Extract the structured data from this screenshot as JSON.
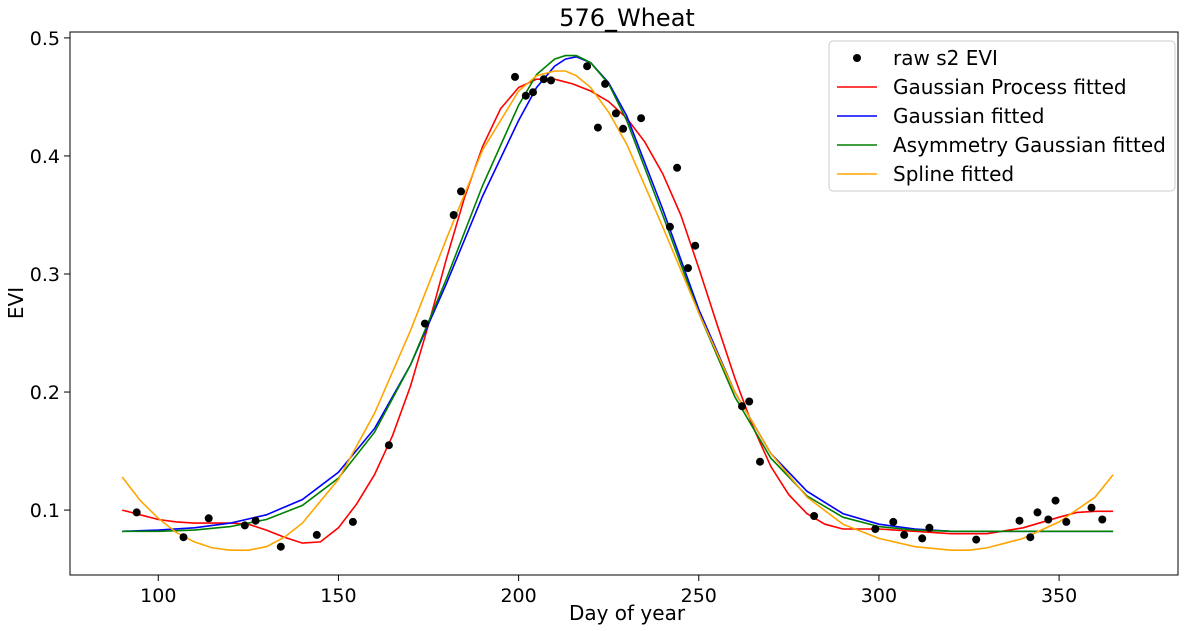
{
  "chart_data": {
    "type": "line",
    "title": "576_Wheat",
    "xlabel": "Day of year",
    "ylabel": "EVI",
    "xlim": [
      75,
      1178
    ],
    "ylim": [
      0.045,
      0.505
    ],
    "xticks": [
      100,
      150,
      200,
      250,
      300,
      350
    ],
    "yticks": [
      0.1,
      0.2,
      0.3,
      0.4,
      0.5
    ],
    "xtick_labels": [
      "100",
      "150",
      "200",
      "250",
      "300",
      "350"
    ],
    "ytick_labels": [
      "0.1",
      "0.2",
      "0.3",
      "0.4",
      "0.5"
    ],
    "grid": false,
    "legend_position": "top-right",
    "scatter": {
      "name": "raw s2 EVI",
      "color": "#000000",
      "x": [
        94,
        107,
        114,
        124,
        127,
        134,
        144,
        154,
        164,
        174,
        182,
        184,
        199,
        202,
        204,
        207,
        209,
        219,
        222,
        224,
        227,
        229,
        234,
        242,
        244,
        247,
        249,
        262,
        264,
        267,
        282,
        299,
        304,
        307,
        312,
        314,
        327,
        339,
        342,
        344,
        347,
        349,
        352,
        359,
        362
      ],
      "y": [
        0.098,
        0.077,
        0.093,
        0.087,
        0.091,
        0.069,
        0.079,
        0.09,
        0.155,
        0.258,
        0.35,
        0.37,
        0.467,
        0.451,
        0.454,
        0.465,
        0.464,
        0.476,
        0.424,
        0.461,
        0.436,
        0.423,
        0.432,
        0.34,
        0.39,
        0.305,
        0.324,
        0.188,
        0.192,
        0.141,
        0.095,
        0.084,
        0.09,
        0.079,
        0.076,
        0.085,
        0.075,
        0.091,
        0.077,
        0.098,
        0.092,
        0.108,
        0.09,
        0.102,
        0.092
      ]
    },
    "series": [
      {
        "name": "Gaussian Process fitted",
        "color": "#ff0000",
        "x": [
          90,
          95,
          100,
          105,
          110,
          115,
          120,
          125,
          130,
          135,
          140,
          145,
          150,
          155,
          160,
          165,
          170,
          175,
          180,
          185,
          190,
          195,
          200,
          205,
          210,
          215,
          220,
          225,
          230,
          235,
          240,
          245,
          250,
          255,
          260,
          265,
          270,
          275,
          280,
          285,
          290,
          300,
          310,
          320,
          330,
          340,
          350,
          355,
          360,
          365
        ],
        "y": [
          0.1,
          0.096,
          0.092,
          0.09,
          0.089,
          0.089,
          0.089,
          0.088,
          0.083,
          0.077,
          0.072,
          0.073,
          0.085,
          0.105,
          0.13,
          0.163,
          0.205,
          0.257,
          0.313,
          0.365,
          0.408,
          0.44,
          0.458,
          0.465,
          0.465,
          0.461,
          0.455,
          0.446,
          0.432,
          0.412,
          0.385,
          0.35,
          0.305,
          0.258,
          0.212,
          0.171,
          0.137,
          0.113,
          0.097,
          0.088,
          0.084,
          0.084,
          0.082,
          0.08,
          0.08,
          0.085,
          0.094,
          0.098,
          0.099,
          0.099
        ]
      },
      {
        "name": "Gaussian fitted",
        "color": "#0000ff",
        "x": [
          90,
          100,
          110,
          120,
          130,
          140,
          150,
          160,
          170,
          180,
          190,
          200,
          205,
          210,
          213,
          216,
          220,
          225,
          230,
          240,
          250,
          260,
          270,
          280,
          290,
          300,
          310,
          320,
          330,
          340,
          350,
          365
        ],
        "y": [
          0.082,
          0.083,
          0.085,
          0.089,
          0.096,
          0.109,
          0.132,
          0.169,
          0.223,
          0.292,
          0.366,
          0.43,
          0.458,
          0.476,
          0.482,
          0.484,
          0.479,
          0.462,
          0.434,
          0.355,
          0.27,
          0.2,
          0.148,
          0.116,
          0.097,
          0.088,
          0.084,
          0.082,
          0.082,
          0.082,
          0.082,
          0.082
        ]
      },
      {
        "name": "Asymmetry Gaussian fitted",
        "color": "#008000",
        "x": [
          90,
          100,
          110,
          120,
          130,
          140,
          150,
          160,
          170,
          180,
          190,
          200,
          205,
          210,
          213,
          216,
          220,
          225,
          230,
          240,
          250,
          260,
          270,
          280,
          290,
          300,
          310,
          320,
          330,
          340,
          350,
          365
        ],
        "y": [
          0.082,
          0.082,
          0.083,
          0.086,
          0.092,
          0.104,
          0.127,
          0.166,
          0.223,
          0.296,
          0.375,
          0.443,
          0.469,
          0.482,
          0.485,
          0.485,
          0.479,
          0.461,
          0.43,
          0.35,
          0.267,
          0.196,
          0.144,
          0.112,
          0.094,
          0.086,
          0.083,
          0.082,
          0.082,
          0.082,
          0.082,
          0.082
        ]
      },
      {
        "name": "Spline fitted",
        "color": "#ffa500",
        "x": [
          90,
          95,
          100,
          105,
          110,
          115,
          120,
          125,
          130,
          135,
          140,
          150,
          160,
          170,
          180,
          190,
          200,
          205,
          210,
          213,
          216,
          220,
          225,
          230,
          240,
          250,
          260,
          270,
          280,
          290,
          300,
          310,
          320,
          325,
          330,
          340,
          350,
          360,
          365
        ],
        "y": [
          0.128,
          0.108,
          0.093,
          0.081,
          0.073,
          0.068,
          0.066,
          0.066,
          0.069,
          0.077,
          0.089,
          0.126,
          0.182,
          0.252,
          0.33,
          0.405,
          0.455,
          0.468,
          0.472,
          0.472,
          0.468,
          0.458,
          0.437,
          0.41,
          0.34,
          0.267,
          0.2,
          0.148,
          0.111,
          0.088,
          0.076,
          0.069,
          0.066,
          0.066,
          0.068,
          0.076,
          0.09,
          0.111,
          0.13
        ]
      }
    ]
  }
}
